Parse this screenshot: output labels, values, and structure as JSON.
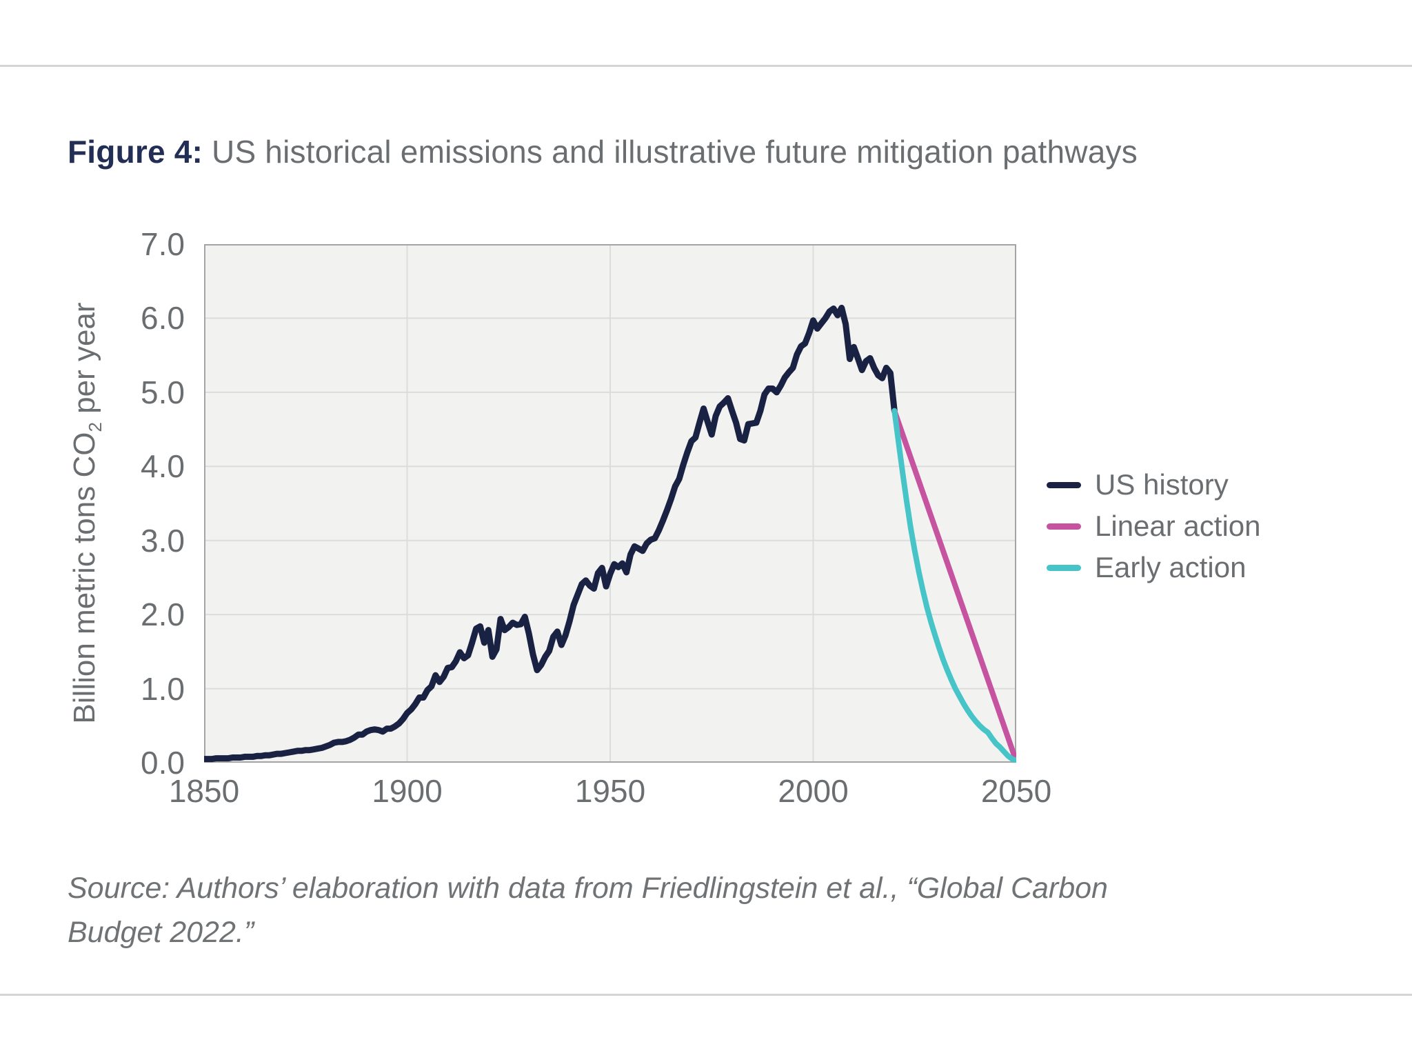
{
  "figure": {
    "label": "Figure 4:",
    "title": " US historical emissions and illustrative future mitigation pathways"
  },
  "source": {
    "line1": "Source: Authors’ elaboration with data from Friedlingstein et al., “Global Carbon",
    "line2": "Budget 2022.”"
  },
  "colors": {
    "figure_label": "#232e55",
    "title_text": "#6b6e71",
    "us_history": "#1a2244",
    "linear_action": "#c6539f",
    "early_action": "#46c4c7",
    "plot_background": "#f2f2f1",
    "plot_border": "#a2a4a5",
    "gridline": "#dbdcdc",
    "divider": "#d4d4d4"
  },
  "legend": {
    "items": [
      {
        "label": "US history",
        "color": "#1a2244"
      },
      {
        "label": "Linear action",
        "color": "#c6539f"
      },
      {
        "label": "Early action",
        "color": "#46c4c7"
      }
    ]
  },
  "chart_data": {
    "type": "line",
    "title": "US historical emissions and illustrative future mitigation pathways",
    "xlabel": "",
    "ylabel_pre": "Billion metric tons CO",
    "ylabel_sub": "2",
    "ylabel_post": " per year",
    "grid": true,
    "legend_position": "right",
    "x_axis": {
      "range": [
        1850,
        2050
      ],
      "ticks": [
        {
          "value": 1850,
          "label": "1850"
        },
        {
          "value": 1900,
          "label": "1900"
        },
        {
          "value": 1950,
          "label": "1950"
        },
        {
          "value": 2000,
          "label": "2000"
        },
        {
          "value": 2050,
          "label": "2050"
        }
      ],
      "grid_values": [
        1900,
        1950,
        2000
      ]
    },
    "y_axis": {
      "range": [
        0,
        7
      ],
      "ticks": [
        {
          "value": 0,
          "label": "0.0"
        },
        {
          "value": 1,
          "label": "1.0"
        },
        {
          "value": 2,
          "label": "2.0"
        },
        {
          "value": 3,
          "label": "3.0"
        },
        {
          "value": 4,
          "label": "4.0"
        },
        {
          "value": 5,
          "label": "5.0"
        },
        {
          "value": 6,
          "label": "6.0"
        },
        {
          "value": 7,
          "label": "7.0"
        }
      ],
      "grid_values": [
        1,
        2,
        3,
        4,
        5,
        6
      ]
    },
    "series": [
      {
        "name": "US history",
        "color": "#1a2244",
        "width": 9,
        "points": [
          [
            1850,
            0.05
          ],
          [
            1851,
            0.05
          ],
          [
            1852,
            0.05
          ],
          [
            1853,
            0.06
          ],
          [
            1854,
            0.06
          ],
          [
            1855,
            0.06
          ],
          [
            1856,
            0.06
          ],
          [
            1857,
            0.07
          ],
          [
            1858,
            0.07
          ],
          [
            1859,
            0.07
          ],
          [
            1860,
            0.08
          ],
          [
            1861,
            0.08
          ],
          [
            1862,
            0.08
          ],
          [
            1863,
            0.09
          ],
          [
            1864,
            0.09
          ],
          [
            1865,
            0.1
          ],
          [
            1866,
            0.1
          ],
          [
            1867,
            0.11
          ],
          [
            1868,
            0.12
          ],
          [
            1869,
            0.12
          ],
          [
            1870,
            0.13
          ],
          [
            1871,
            0.14
          ],
          [
            1872,
            0.15
          ],
          [
            1873,
            0.16
          ],
          [
            1874,
            0.16
          ],
          [
            1875,
            0.17
          ],
          [
            1876,
            0.17
          ],
          [
            1877,
            0.18
          ],
          [
            1878,
            0.19
          ],
          [
            1879,
            0.2
          ],
          [
            1880,
            0.22
          ],
          [
            1881,
            0.24
          ],
          [
            1882,
            0.27
          ],
          [
            1883,
            0.28
          ],
          [
            1884,
            0.28
          ],
          [
            1885,
            0.29
          ],
          [
            1886,
            0.31
          ],
          [
            1887,
            0.34
          ],
          [
            1888,
            0.38
          ],
          [
            1889,
            0.38
          ],
          [
            1890,
            0.42
          ],
          [
            1891,
            0.44
          ],
          [
            1892,
            0.45
          ],
          [
            1893,
            0.44
          ],
          [
            1894,
            0.42
          ],
          [
            1895,
            0.46
          ],
          [
            1896,
            0.46
          ],
          [
            1897,
            0.49
          ],
          [
            1898,
            0.53
          ],
          [
            1899,
            0.59
          ],
          [
            1900,
            0.67
          ],
          [
            1901,
            0.72
          ],
          [
            1902,
            0.79
          ],
          [
            1903,
            0.88
          ],
          [
            1904,
            0.88
          ],
          [
            1905,
            0.98
          ],
          [
            1906,
            1.03
          ],
          [
            1907,
            1.18
          ],
          [
            1908,
            1.09
          ],
          [
            1909,
            1.16
          ],
          [
            1910,
            1.28
          ],
          [
            1911,
            1.29
          ],
          [
            1912,
            1.37
          ],
          [
            1913,
            1.49
          ],
          [
            1914,
            1.41
          ],
          [
            1915,
            1.45
          ],
          [
            1916,
            1.62
          ],
          [
            1917,
            1.81
          ],
          [
            1918,
            1.84
          ],
          [
            1919,
            1.62
          ],
          [
            1920,
            1.79
          ],
          [
            1921,
            1.43
          ],
          [
            1922,
            1.53
          ],
          [
            1923,
            1.94
          ],
          [
            1924,
            1.79
          ],
          [
            1925,
            1.83
          ],
          [
            1926,
            1.89
          ],
          [
            1927,
            1.86
          ],
          [
            1928,
            1.87
          ],
          [
            1929,
            1.97
          ],
          [
            1930,
            1.74
          ],
          [
            1931,
            1.46
          ],
          [
            1932,
            1.25
          ],
          [
            1933,
            1.32
          ],
          [
            1934,
            1.43
          ],
          [
            1935,
            1.51
          ],
          [
            1936,
            1.7
          ],
          [
            1937,
            1.77
          ],
          [
            1938,
            1.59
          ],
          [
            1939,
            1.72
          ],
          [
            1940,
            1.91
          ],
          [
            1941,
            2.13
          ],
          [
            1942,
            2.27
          ],
          [
            1943,
            2.41
          ],
          [
            1944,
            2.46
          ],
          [
            1945,
            2.39
          ],
          [
            1946,
            2.35
          ],
          [
            1947,
            2.56
          ],
          [
            1948,
            2.63
          ],
          [
            1949,
            2.38
          ],
          [
            1950,
            2.55
          ],
          [
            1951,
            2.68
          ],
          [
            1952,
            2.64
          ],
          [
            1953,
            2.69
          ],
          [
            1954,
            2.57
          ],
          [
            1955,
            2.81
          ],
          [
            1956,
            2.92
          ],
          [
            1957,
            2.89
          ],
          [
            1958,
            2.86
          ],
          [
            1959,
            2.96
          ],
          [
            1960,
            3.01
          ],
          [
            1961,
            3.03
          ],
          [
            1962,
            3.14
          ],
          [
            1963,
            3.27
          ],
          [
            1964,
            3.41
          ],
          [
            1965,
            3.56
          ],
          [
            1966,
            3.73
          ],
          [
            1967,
            3.83
          ],
          [
            1968,
            4.02
          ],
          [
            1969,
            4.19
          ],
          [
            1970,
            4.34
          ],
          [
            1971,
            4.39
          ],
          [
            1972,
            4.59
          ],
          [
            1973,
            4.78
          ],
          [
            1974,
            4.6
          ],
          [
            1975,
            4.43
          ],
          [
            1976,
            4.68
          ],
          [
            1977,
            4.81
          ],
          [
            1978,
            4.86
          ],
          [
            1979,
            4.92
          ],
          [
            1980,
            4.75
          ],
          [
            1981,
            4.59
          ],
          [
            1982,
            4.37
          ],
          [
            1983,
            4.35
          ],
          [
            1984,
            4.57
          ],
          [
            1985,
            4.58
          ],
          [
            1986,
            4.59
          ],
          [
            1987,
            4.75
          ],
          [
            1988,
            4.97
          ],
          [
            1989,
            5.05
          ],
          [
            1990,
            5.05
          ],
          [
            1991,
            5.0
          ],
          [
            1992,
            5.09
          ],
          [
            1993,
            5.2
          ],
          [
            1994,
            5.27
          ],
          [
            1995,
            5.33
          ],
          [
            1996,
            5.51
          ],
          [
            1997,
            5.62
          ],
          [
            1998,
            5.66
          ],
          [
            1999,
            5.8
          ],
          [
            2000,
            5.97
          ],
          [
            2001,
            5.86
          ],
          [
            2002,
            5.93
          ],
          [
            2003,
            6.0
          ],
          [
            2004,
            6.09
          ],
          [
            2005,
            6.13
          ],
          [
            2006,
            6.04
          ],
          [
            2007,
            6.14
          ],
          [
            2008,
            5.92
          ],
          [
            2009,
            5.45
          ],
          [
            2010,
            5.61
          ],
          [
            2011,
            5.46
          ],
          [
            2012,
            5.3
          ],
          [
            2013,
            5.42
          ],
          [
            2014,
            5.46
          ],
          [
            2015,
            5.33
          ],
          [
            2016,
            5.23
          ],
          [
            2017,
            5.19
          ],
          [
            2018,
            5.33
          ],
          [
            2019,
            5.26
          ],
          [
            2020,
            4.75
          ]
        ]
      },
      {
        "name": "Linear action",
        "color": "#c6539f",
        "width": 8,
        "points": [
          [
            2020,
            4.75
          ],
          [
            2050,
            0.02
          ]
        ]
      },
      {
        "name": "Early action",
        "color": "#46c4c7",
        "width": 8,
        "points": [
          [
            2020,
            4.75
          ],
          [
            2021,
            4.33
          ],
          [
            2022,
            3.92
          ],
          [
            2023,
            3.53
          ],
          [
            2024,
            3.17
          ],
          [
            2025,
            2.86
          ],
          [
            2026,
            2.58
          ],
          [
            2027,
            2.33
          ],
          [
            2028,
            2.1
          ],
          [
            2029,
            1.9
          ],
          [
            2030,
            1.72
          ],
          [
            2031,
            1.55
          ],
          [
            2032,
            1.39
          ],
          [
            2033,
            1.25
          ],
          [
            2034,
            1.12
          ],
          [
            2035,
            1.0
          ],
          [
            2036,
            0.9
          ],
          [
            2037,
            0.8
          ],
          [
            2038,
            0.71
          ],
          [
            2039,
            0.63
          ],
          [
            2040,
            0.56
          ],
          [
            2041,
            0.5
          ],
          [
            2042,
            0.45
          ],
          [
            2043,
            0.41
          ],
          [
            2044,
            0.33
          ],
          [
            2045,
            0.26
          ],
          [
            2046,
            0.21
          ],
          [
            2047,
            0.15
          ],
          [
            2048,
            0.09
          ],
          [
            2049,
            0.05
          ],
          [
            2050,
            0.03
          ]
        ]
      }
    ]
  }
}
